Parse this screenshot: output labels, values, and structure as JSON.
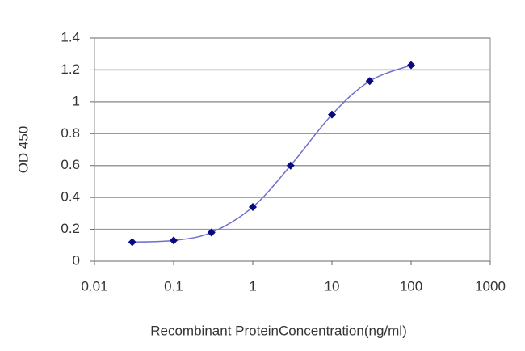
{
  "chart_data": {
    "type": "line",
    "x_label": "Recombinant ProteinConcentration(ng/ml)",
    "y_label": "OD 450",
    "x": [
      0.03,
      0.1,
      0.3,
      1,
      3,
      10,
      30,
      100
    ],
    "series": [
      {
        "color": "#6f6fd0",
        "marker_color": "#0a0a80",
        "values": [
          0.12,
          0.13,
          0.18,
          0.34,
          0.6,
          0.92,
          1.13,
          1.23
        ]
      }
    ],
    "xlim": [
      0.01,
      1000
    ],
    "xticks": [
      0.01,
      0.1,
      1,
      10,
      100,
      1000
    ],
    "xscale": "log",
    "ylim": [
      0,
      1.4
    ],
    "yticks": [
      0,
      0.2,
      0.4,
      0.6,
      0.8,
      1,
      1.2,
      1.4
    ],
    "grid": true
  }
}
